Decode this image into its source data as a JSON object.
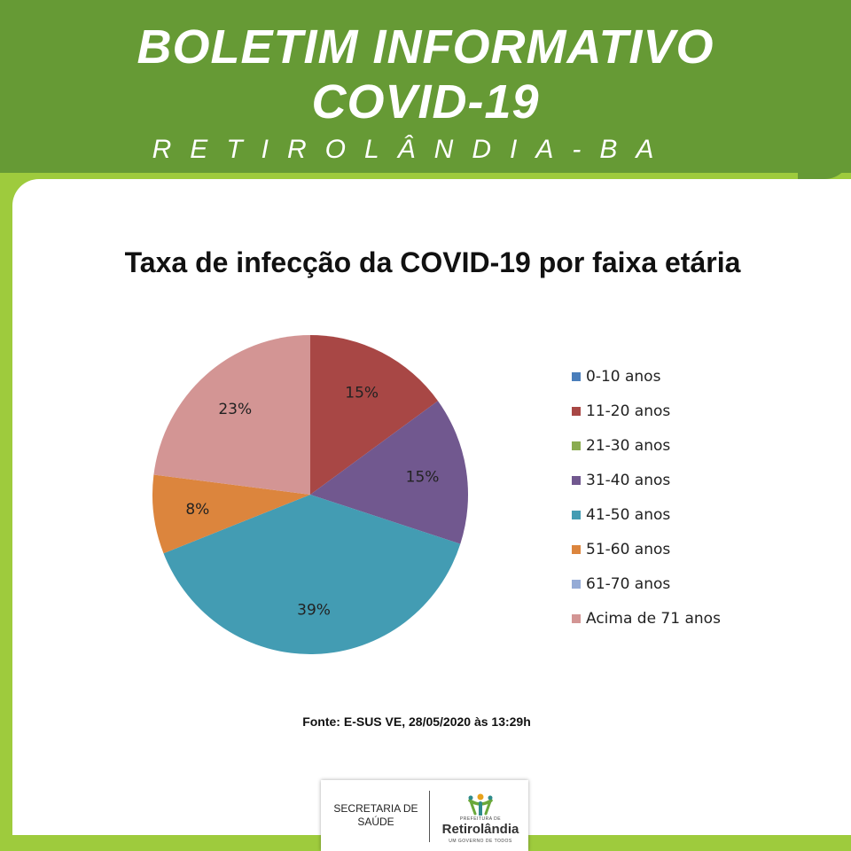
{
  "header": {
    "title_line1": "BOLETIM INFORMATIVO",
    "title_line2": "COVID-19",
    "subtitle": "RETIROLÂNDIA-BA"
  },
  "colors": {
    "header_green": "#669a35",
    "accent_lime": "#9ecb3d"
  },
  "chart_data": {
    "type": "pie",
    "title": "Taxa de infecção da COVID-19 por faixa etária",
    "slices": [
      {
        "label": "0-10 anos",
        "value": 0,
        "color": "#4a7ebb",
        "value_label": ""
      },
      {
        "label": "11-20 anos",
        "value": 15,
        "color": "#a84745",
        "value_label": "15%"
      },
      {
        "label": "21-30 anos",
        "value": 0,
        "color": "#8aac50",
        "value_label": ""
      },
      {
        "label": "31-40 anos",
        "value": 15,
        "color": "#71588f",
        "value_label": "15%"
      },
      {
        "label": "41-50 anos",
        "value": 39,
        "color": "#439cb3",
        "value_label": "39%"
      },
      {
        "label": "51-60 anos",
        "value": 8,
        "color": "#dc853d",
        "value_label": "8%"
      },
      {
        "label": "61-70 anos",
        "value": 0,
        "color": "#95abd6",
        "value_label": ""
      },
      {
        "label": "Acima de 71 anos",
        "value": 23,
        "color": "#d39594",
        "value_label": "23%"
      }
    ],
    "legend_position": "right"
  },
  "source": {
    "label": "Fonte:",
    "text": "E-SUS VE, 28/05/2020 às 13:29h"
  },
  "footer": {
    "department_line1": "SECRETARIA DE",
    "department_line2": "SAÚDE",
    "logo_top_text": "PREFEITURA DE",
    "logo_name": "Retirolândia",
    "logo_slogan": "UM GOVERNO DE TODOS"
  }
}
